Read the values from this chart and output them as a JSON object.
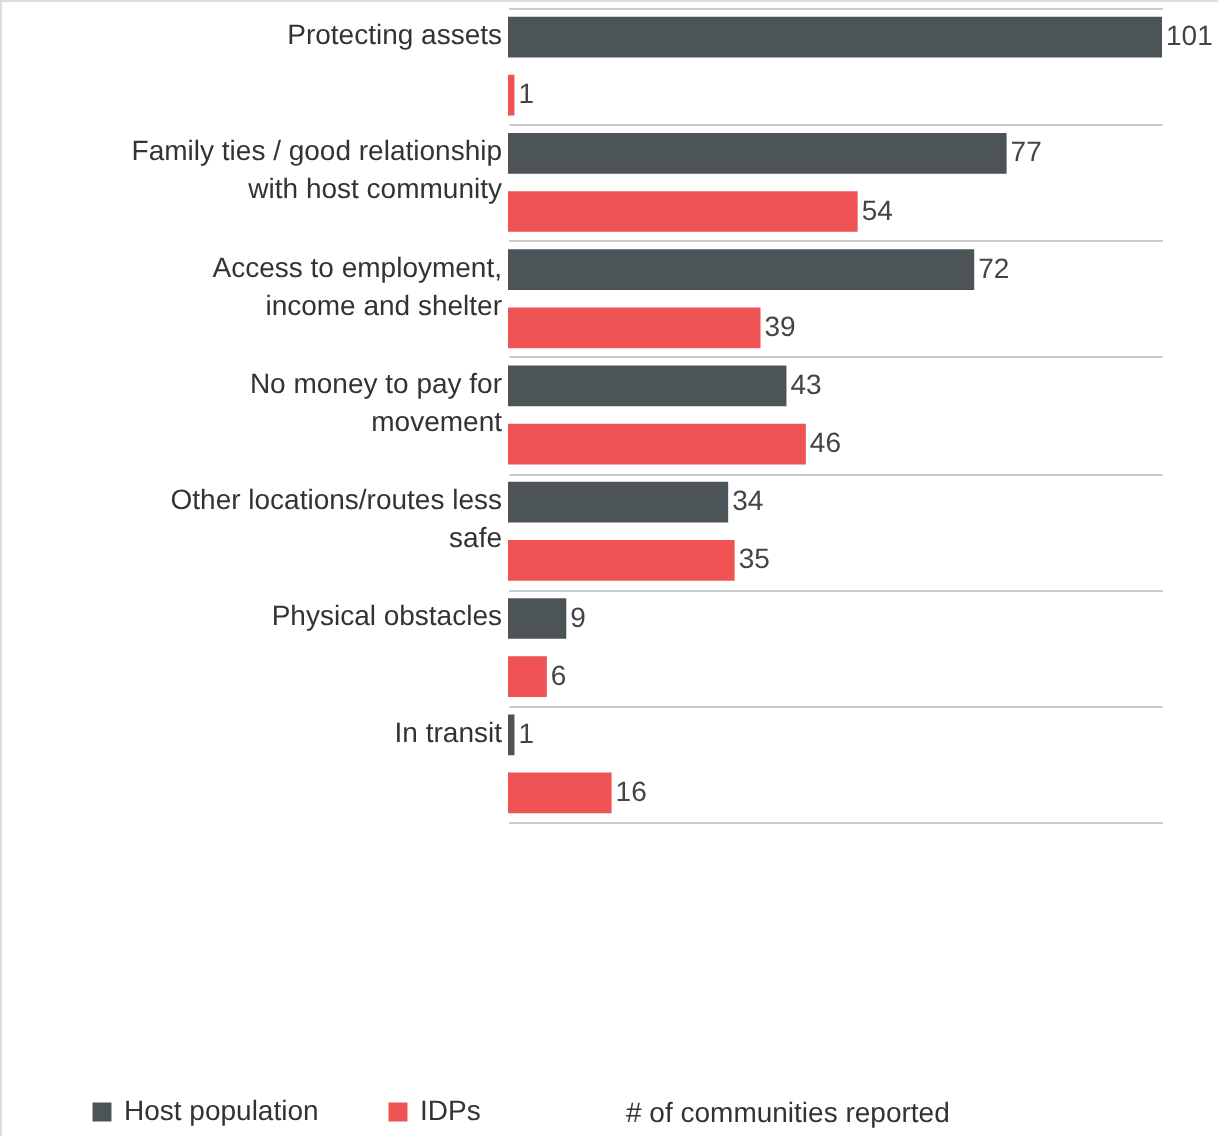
{
  "chart_data": {
    "type": "bar",
    "orientation": "horizontal",
    "annotations": [
      "# of communities reported"
    ],
    "categories": [
      "Protecting assets",
      "Family ties / good relationship\nwith host community",
      "Access to employment,\nincome and shelter",
      "No money to pay for\nmovement",
      "Other locations/routes less\nsafe",
      "Physical obstacles",
      "In transit"
    ],
    "series": [
      {
        "name": "Host population",
        "color": "#4d5458",
        "values": [
          101,
          77,
          72,
          43,
          34,
          9,
          1
        ]
      },
      {
        "name": "IDPs",
        "color": "#ef5353",
        "values": [
          1,
          54,
          39,
          46,
          35,
          6,
          16
        ]
      }
    ],
    "data_labels": true,
    "grid": "y",
    "legend": "bottom left"
  }
}
